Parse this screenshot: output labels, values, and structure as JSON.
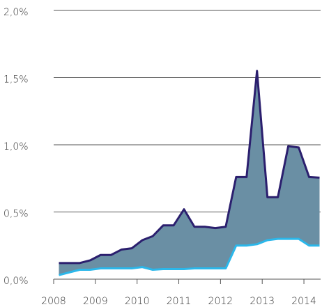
{
  "chart_data": {
    "type": "area_band",
    "x": [
      2008.125,
      2008.375,
      2008.625,
      2008.875,
      2009.125,
      2009.375,
      2009.625,
      2009.875,
      2010.125,
      2010.375,
      2010.625,
      2010.875,
      2011.125,
      2011.375,
      2011.625,
      2011.875,
      2012.125,
      2012.375,
      2012.625,
      2012.875,
      2013.125,
      2013.375,
      2013.625,
      2013.875,
      2014.125,
      2014.375
    ],
    "series": [
      {
        "color": "#2b1f6e",
        "values": [
          0.12,
          0.12,
          0.12,
          0.14,
          0.18,
          0.18,
          0.22,
          0.23,
          0.29,
          0.32,
          0.4,
          0.4,
          0.52,
          0.39,
          0.39,
          0.38,
          0.39,
          0.76,
          0.76,
          1.55,
          0.61,
          0.61,
          0.99,
          0.98,
          0.76,
          0.755
        ]
      },
      {
        "color": "#2bb7ea",
        "values": [
          0.03,
          0.05,
          0.07,
          0.07,
          0.08,
          0.08,
          0.08,
          0.08,
          0.09,
          0.07,
          0.075,
          0.075,
          0.075,
          0.08,
          0.08,
          0.08,
          0.08,
          0.25,
          0.25,
          0.26,
          0.29,
          0.3,
          0.3,
          0.3,
          0.25,
          0.25
        ]
      }
    ],
    "fill_color": "#6a8fa4",
    "xlim": [
      2008,
      2014.4
    ],
    "xticks": [
      2008,
      2009,
      2010,
      2011,
      2012,
      2013,
      2014
    ],
    "ylim": [
      0,
      2
    ],
    "yticks": [
      {
        "value": 0,
        "label": "0,0%"
      },
      {
        "value": 0.5,
        "label": "0,5%"
      },
      {
        "value": 1,
        "label": "1,0%"
      },
      {
        "value": 1.5,
        "label": "1,5%"
      },
      {
        "value": 2,
        "label": "2,0%"
      }
    ],
    "grid": true
  }
}
